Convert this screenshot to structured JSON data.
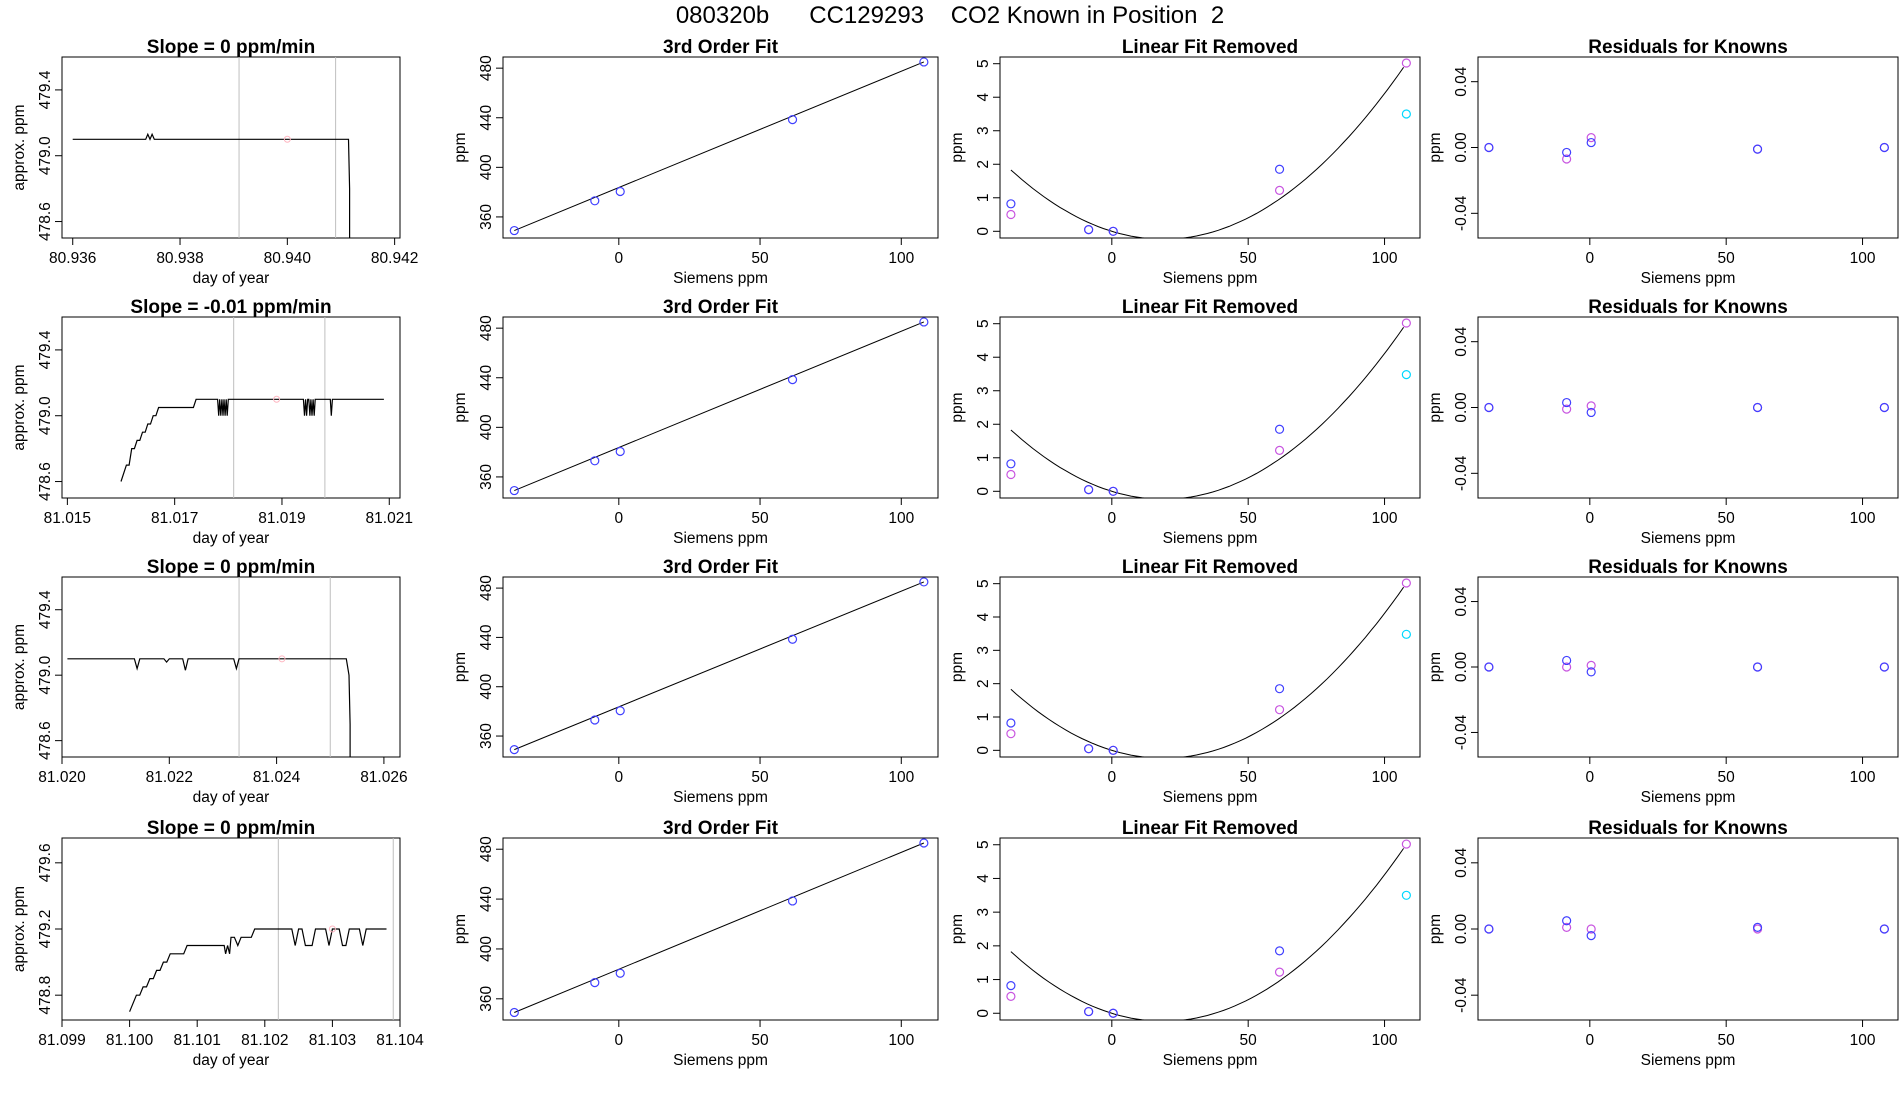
{
  "figure": {
    "suptitle": "080320b      CC129293    CO2 Known in Position  2"
  },
  "colors": {
    "line": "#000000",
    "vline": "#bebebe",
    "blue": "#4040ff",
    "violet": "#c855e0",
    "cyan": "#00d8ff",
    "pink": "#ffb6c1"
  },
  "chart_data": [
    {
      "type": "line",
      "row": 1,
      "panel": "timeseries",
      "title": "Slope =  0  ppm/min",
      "xlabel": "day of year",
      "ylabel": "approx. ppm",
      "xlim": [
        80.9358,
        80.9421
      ],
      "ylim": [
        478.5,
        479.6
      ],
      "xticks": [
        "80.936",
        "80.938",
        "80.940",
        "80.942"
      ],
      "yticks": [
        "478.6",
        "479.0",
        "479.4"
      ],
      "vlines": [
        80.9391,
        80.9409
      ],
      "series": [
        {
          "x": [
            80.936,
            80.93736,
            80.9374,
            80.93744,
            80.93748,
            80.93752,
            80.9409,
            80.94114,
            80.94116,
            80.94116
          ],
          "y": [
            479.1,
            479.1,
            479.13,
            479.1,
            479.13,
            479.1,
            479.1,
            479.1,
            478.8,
            478.5
          ]
        }
      ],
      "marker": {
        "x": 80.94,
        "y": 479.1
      }
    },
    {
      "type": "line",
      "row": 2,
      "panel": "timeseries",
      "title": "Slope =  -0.01  ppm/min",
      "xlabel": "day of year",
      "ylabel": "approx. ppm",
      "xlim": [
        81.0149,
        81.0212
      ],
      "ylim": [
        478.5,
        479.6
      ],
      "xticks": [
        "81.015",
        "81.017",
        "81.019",
        "81.021"
      ],
      "yticks": [
        "478.6",
        "479.0",
        "479.4"
      ],
      "vlines": [
        81.0181,
        81.0198
      ],
      "series": [
        {
          "x": [
            81.016,
            81.0161,
            81.01615,
            81.0162,
            81.01625,
            81.0163,
            81.01635,
            81.0164,
            81.01645,
            81.0165,
            81.01655,
            81.0166,
            81.01665,
            81.0167,
            81.0173,
            81.01735,
            81.0174,
            81.0175,
            81.0178,
            81.01782,
            81.01784,
            81.01786,
            81.01788,
            81.0179,
            81.01792,
            81.01794,
            81.01796,
            81.01798,
            81.018,
            81.01802,
            81.0194,
            81.01942,
            81.01944,
            81.01946,
            81.01948,
            81.0195,
            81.01952,
            81.01954,
            81.01956,
            81.01958,
            81.0196,
            81.01962,
            81.01964,
            81.0199,
            81.01992,
            81.01994,
            81.01996,
            81.0209
          ],
          "y": [
            478.6,
            478.7,
            478.7,
            478.8,
            478.8,
            478.85,
            478.85,
            478.9,
            478.9,
            478.95,
            478.95,
            479.0,
            479.0,
            479.05,
            479.05,
            479.05,
            479.1,
            479.1,
            479.1,
            479.0,
            479.1,
            479.0,
            479.1,
            479.0,
            479.1,
            479.0,
            479.1,
            479.0,
            479.1,
            479.1,
            479.1,
            479.0,
            479.1,
            479.0,
            479.1,
            479.1,
            479.0,
            479.1,
            479.0,
            479.1,
            479.0,
            479.1,
            479.1,
            479.1,
            479.0,
            479.1,
            479.1,
            479.1
          ]
        }
      ],
      "marker": {
        "x": 81.0189,
        "y": 479.1
      }
    },
    {
      "type": "line",
      "row": 3,
      "panel": "timeseries",
      "title": "Slope =  0  ppm/min",
      "xlabel": "day of year",
      "ylabel": "approx. ppm",
      "xlim": [
        81.02,
        81.0263
      ],
      "ylim": [
        478.5,
        479.6
      ],
      "xticks": [
        "81.020",
        "81.022",
        "81.024",
        "81.026"
      ],
      "yticks": [
        "478.6",
        "479.0",
        "479.4"
      ],
      "vlines": [
        81.0233,
        81.025
      ],
      "series": [
        {
          "x": [
            81.0201,
            81.02135,
            81.0214,
            81.02145,
            81.0219,
            81.02195,
            81.022,
            81.02225,
            81.0223,
            81.02235,
            81.0232,
            81.02325,
            81.0233,
            81.0234,
            81.0253,
            81.02535,
            81.02537,
            81.02537
          ],
          "y": [
            479.1,
            479.1,
            479.04,
            479.1,
            479.1,
            479.08,
            479.1,
            479.1,
            479.03,
            479.1,
            479.1,
            479.04,
            479.1,
            479.1,
            479.1,
            479.0,
            478.7,
            478.5
          ]
        }
      ],
      "marker": {
        "x": 81.0241,
        "y": 479.1
      }
    },
    {
      "type": "line",
      "row": 4,
      "panel": "timeseries",
      "title": "Slope =  0  ppm/min",
      "xlabel": "day of year",
      "ylabel": "approx. ppm",
      "xlim": [
        81.099,
        81.104
      ],
      "ylim": [
        478.65,
        479.75
      ],
      "xticks": [
        "81.099",
        "81.100",
        "81.101",
        "81.102",
        "81.103",
        "81.104"
      ],
      "yticks": [
        "478.8",
        "479.2",
        "479.6"
      ],
      "vlines": [
        81.1022,
        81.1039
      ],
      "series": [
        {
          "x": [
            81.1,
            81.1001,
            81.10015,
            81.1002,
            81.10025,
            81.1003,
            81.10035,
            81.1004,
            81.10045,
            81.1005,
            81.10055,
            81.1006,
            81.1008,
            81.10085,
            81.1009,
            81.1014,
            81.10142,
            81.10145,
            81.10148,
            81.1015,
            81.10155,
            81.1016,
            81.10165,
            81.1017,
            81.1018,
            81.10185,
            81.1019,
            81.1024,
            81.10245,
            81.1025,
            81.10255,
            81.1026,
            81.1027,
            81.10275,
            81.1028,
            81.1029,
            81.10295,
            81.103,
            81.1031,
            81.10315,
            81.1032,
            81.10325,
            81.1033,
            81.1034,
            81.10345,
            81.1035,
            81.1036,
            81.1038
          ],
          "y": [
            478.7,
            478.8,
            478.8,
            478.85,
            478.85,
            478.9,
            478.9,
            478.95,
            478.95,
            479.0,
            479.0,
            479.05,
            479.05,
            479.1,
            479.1,
            479.1,
            479.05,
            479.1,
            479.05,
            479.15,
            479.15,
            479.1,
            479.15,
            479.15,
            479.15,
            479.2,
            479.2,
            479.2,
            479.1,
            479.2,
            479.2,
            479.1,
            479.1,
            479.2,
            479.2,
            479.2,
            479.1,
            479.2,
            479.2,
            479.1,
            479.1,
            479.2,
            479.2,
            479.2,
            479.1,
            479.2,
            479.2,
            479.2
          ]
        }
      ],
      "marker": {
        "x": 81.103,
        "y": 479.2
      }
    },
    {
      "type": "scatter",
      "row": 1,
      "panel": "fit",
      "title": "3rd Order Fit",
      "xlabel": "Siemens ppm",
      "ylabel": "ppm",
      "xlim": [
        -41,
        113
      ],
      "ylim": [
        343,
        489
      ],
      "xticks": [
        "0",
        "50",
        "100"
      ],
      "yticks": [
        "360",
        "400",
        "440",
        "480"
      ],
      "x": [
        -37.0,
        -8.5,
        0.5,
        61.5,
        108.0
      ],
      "y": [
        349.0,
        373.0,
        380.5,
        438.5,
        485.0
      ],
      "curve": [
        [
          -37.0,
          349.0
        ],
        [
          108.0,
          485.0
        ]
      ]
    },
    {
      "type": "scatter",
      "row": 2,
      "panel": "fit",
      "title": "3rd Order Fit",
      "xlabel": "Siemens ppm",
      "ylabel": "ppm",
      "xlim": [
        -41,
        113
      ],
      "ylim": [
        343,
        489
      ],
      "xticks": [
        "0",
        "50",
        "100"
      ],
      "yticks": [
        "360",
        "400",
        "440",
        "480"
      ],
      "x": [
        -37.0,
        -8.5,
        0.5,
        61.5,
        108.0
      ],
      "y": [
        349.0,
        373.0,
        380.5,
        438.5,
        485.0
      ],
      "curve": [
        [
          -37.0,
          349.0
        ],
        [
          108.0,
          485.0
        ]
      ]
    },
    {
      "type": "scatter",
      "row": 3,
      "panel": "fit",
      "title": "3rd Order Fit",
      "xlabel": "Siemens ppm",
      "ylabel": "ppm",
      "xlim": [
        -41,
        113
      ],
      "ylim": [
        343,
        489
      ],
      "xticks": [
        "0",
        "50",
        "100"
      ],
      "yticks": [
        "360",
        "400",
        "440",
        "480"
      ],
      "x": [
        -37.0,
        -8.5,
        0.5,
        61.5,
        108.0
      ],
      "y": [
        349.0,
        373.0,
        380.5,
        438.5,
        485.0
      ],
      "curve": [
        [
          -37.0,
          349.0
        ],
        [
          108.0,
          485.0
        ]
      ]
    },
    {
      "type": "scatter",
      "row": 4,
      "panel": "fit",
      "title": "3rd Order Fit",
      "xlabel": "Siemens ppm",
      "ylabel": "ppm",
      "xlim": [
        -41,
        113
      ],
      "ylim": [
        343,
        489
      ],
      "xticks": [
        "0",
        "50",
        "100"
      ],
      "yticks": [
        "360",
        "400",
        "440",
        "480"
      ],
      "x": [
        -37.0,
        -8.5,
        0.5,
        61.5,
        108.0
      ],
      "y": [
        349.0,
        373.0,
        380.5,
        438.5,
        485.0
      ],
      "curve": [
        [
          -37.0,
          349.0
        ],
        [
          108.0,
          485.0
        ]
      ]
    },
    {
      "type": "scatter",
      "row": 1,
      "panel": "linfit",
      "title": "Linear Fit Removed",
      "xlabel": "Siemens ppm",
      "ylabel": "ppm",
      "xlim": [
        -41,
        113
      ],
      "ylim": [
        -0.2,
        5.2
      ],
      "xticks": [
        "0",
        "50",
        "100"
      ],
      "yticks": [
        "0",
        "1",
        "2",
        "3",
        "4",
        "5"
      ],
      "blue": {
        "x": [
          -37.0,
          -8.5,
          0.5,
          61.5
        ],
        "y": [
          0.82,
          0.05,
          0.0,
          1.85
        ]
      },
      "violet": {
        "x": [
          -37.0,
          -8.5,
          0.5,
          61.5,
          108.0
        ],
        "y": [
          0.5,
          0.05,
          0.0,
          1.22,
          5.02
        ]
      },
      "cyan": {
        "x": [
          108.0
        ],
        "y": [
          3.5
        ]
      },
      "curve_coeffs": [
        0.0,
        -0.025,
        0.000661
      ]
    },
    {
      "type": "scatter",
      "row": 2,
      "panel": "linfit",
      "title": "Linear Fit Removed",
      "xlabel": "Siemens ppm",
      "ylabel": "ppm",
      "xlim": [
        -41,
        113
      ],
      "ylim": [
        -0.2,
        5.2
      ],
      "xticks": [
        "0",
        "50",
        "100"
      ],
      "yticks": [
        "0",
        "1",
        "2",
        "3",
        "4",
        "5"
      ],
      "blue": {
        "x": [
          -37.0,
          -8.5,
          0.5,
          61.5
        ],
        "y": [
          0.82,
          0.05,
          0.0,
          1.85
        ]
      },
      "violet": {
        "x": [
          -37.0,
          -8.5,
          0.5,
          61.5,
          108.0
        ],
        "y": [
          0.5,
          0.05,
          0.0,
          1.22,
          5.02
        ]
      },
      "cyan": {
        "x": [
          108.0
        ],
        "y": [
          3.48
        ]
      },
      "curve_coeffs": [
        0.0,
        -0.025,
        0.000661
      ]
    },
    {
      "type": "scatter",
      "row": 3,
      "panel": "linfit",
      "title": "Linear Fit Removed",
      "xlabel": "Siemens ppm",
      "ylabel": "ppm",
      "xlim": [
        -41,
        113
      ],
      "ylim": [
        -0.2,
        5.2
      ],
      "xticks": [
        "0",
        "50",
        "100"
      ],
      "yticks": [
        "0",
        "1",
        "2",
        "3",
        "4",
        "5"
      ],
      "blue": {
        "x": [
          -37.0,
          -8.5,
          0.5,
          61.5
        ],
        "y": [
          0.82,
          0.05,
          0.0,
          1.85
        ]
      },
      "violet": {
        "x": [
          -37.0,
          -8.5,
          0.5,
          61.5,
          108.0
        ],
        "y": [
          0.5,
          0.05,
          0.0,
          1.22,
          5.02
        ]
      },
      "cyan": {
        "x": [
          108.0
        ],
        "y": [
          3.48
        ]
      },
      "curve_coeffs": [
        0.0,
        -0.025,
        0.000661
      ]
    },
    {
      "type": "scatter",
      "row": 4,
      "panel": "linfit",
      "title": "Linear Fit Removed",
      "xlabel": "Siemens ppm",
      "ylabel": "ppm",
      "xlim": [
        -41,
        113
      ],
      "ylim": [
        -0.2,
        5.2
      ],
      "xticks": [
        "0",
        "50",
        "100"
      ],
      "yticks": [
        "0",
        "1",
        "2",
        "3",
        "4",
        "5"
      ],
      "blue": {
        "x": [
          -37.0,
          -8.5,
          0.5,
          61.5
        ],
        "y": [
          0.82,
          0.05,
          0.0,
          1.85
        ]
      },
      "violet": {
        "x": [
          -37.0,
          -8.5,
          0.5,
          61.5,
          108.0
        ],
        "y": [
          0.5,
          0.05,
          0.0,
          1.22,
          5.02
        ]
      },
      "cyan": {
        "x": [
          108.0
        ],
        "y": [
          3.5
        ]
      },
      "curve_coeffs": [
        0.0,
        -0.025,
        0.000661
      ]
    },
    {
      "type": "scatter",
      "row": 1,
      "panel": "resid",
      "title": "Residuals for Knowns",
      "xlabel": "Siemens ppm",
      "ylabel": "ppm",
      "xlim": [
        -41,
        113
      ],
      "ylim": [
        -0.055,
        0.055
      ],
      "xticks": [
        "0",
        "50",
        "100"
      ],
      "yticks": [
        "-0.04",
        "0.00",
        "0.04"
      ],
      "blue": {
        "x": [
          -37.0,
          -8.5,
          0.5,
          61.5,
          108.0
        ],
        "y": [
          0.0,
          -0.003,
          0.003,
          -0.001,
          0.0
        ]
      },
      "violet": {
        "x": [
          -37.0,
          -8.5,
          0.5,
          61.5,
          108.0
        ],
        "y": [
          0.0,
          -0.007,
          0.006,
          -0.001,
          0.0
        ]
      }
    },
    {
      "type": "scatter",
      "row": 2,
      "panel": "resid",
      "title": "Residuals for Knowns",
      "xlabel": "Siemens ppm",
      "ylabel": "ppm",
      "xlim": [
        -41,
        113
      ],
      "ylim": [
        -0.055,
        0.055
      ],
      "xticks": [
        "0",
        "50",
        "100"
      ],
      "yticks": [
        "-0.04",
        "0.00",
        "0.04"
      ],
      "blue": {
        "x": [
          -37.0,
          -8.5,
          0.5,
          61.5,
          108.0
        ],
        "y": [
          0.0,
          0.003,
          -0.003,
          0.0,
          0.0
        ]
      },
      "violet": {
        "x": [
          -37.0,
          -8.5,
          0.5,
          61.5,
          108.0
        ],
        "y": [
          0.0,
          -0.001,
          0.001,
          0.0,
          0.0
        ]
      }
    },
    {
      "type": "scatter",
      "row": 3,
      "panel": "resid",
      "title": "Residuals for Knowns",
      "xlabel": "Siemens ppm",
      "ylabel": "ppm",
      "xlim": [
        -41,
        113
      ],
      "ylim": [
        -0.055,
        0.055
      ],
      "xticks": [
        "0",
        "50",
        "100"
      ],
      "yticks": [
        "-0.04",
        "0.00",
        "0.04"
      ],
      "blue": {
        "x": [
          -37.0,
          -8.5,
          0.5,
          61.5,
          108.0
        ],
        "y": [
          0.0,
          0.004,
          -0.003,
          0.0,
          0.0
        ]
      },
      "violet": {
        "x": [
          -37.0,
          -8.5,
          0.5,
          61.5,
          108.0
        ],
        "y": [
          0.0,
          0.0,
          0.001,
          0.0,
          0.0
        ]
      }
    },
    {
      "type": "scatter",
      "row": 4,
      "panel": "resid",
      "title": "Residuals for Knowns",
      "xlabel": "Siemens ppm",
      "ylabel": "ppm",
      "xlim": [
        -41,
        113
      ],
      "ylim": [
        -0.055,
        0.055
      ],
      "xticks": [
        "0",
        "50",
        "100"
      ],
      "yticks": [
        "-0.04",
        "0.00",
        "0.04"
      ],
      "blue": {
        "x": [
          -37.0,
          -8.5,
          0.5,
          61.5,
          108.0
        ],
        "y": [
          0.0,
          0.005,
          -0.004,
          0.001,
          0.0
        ]
      },
      "violet": {
        "x": [
          -37.0,
          -8.5,
          0.5,
          61.5,
          108.0
        ],
        "y": [
          0.0,
          0.001,
          0.0,
          0.0,
          0.0
        ]
      }
    }
  ]
}
